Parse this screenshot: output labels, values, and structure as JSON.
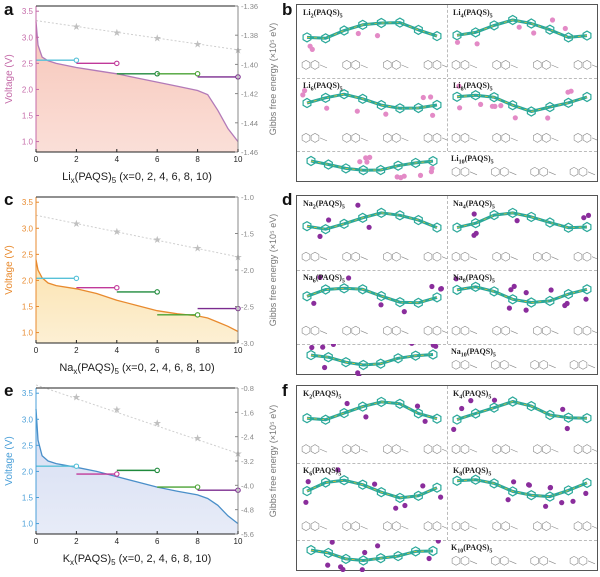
{
  "chart_data": [
    {
      "type": "line",
      "panel": "a",
      "xlabel_prefix": "Li",
      "xlabel_suffix": "(PAQS)",
      "xlabel_tail": " (x=0, 2, 4, 6, 8, 10)",
      "ylabel": "Voltage (V)",
      "y2label": "Gibbs free energy (×10⁵ eV)",
      "xlim": [
        0,
        10
      ],
      "ylim": [
        0.8,
        3.6
      ],
      "y2lim": [
        -1.46,
        -1.36
      ],
      "xticks": [
        0,
        2,
        4,
        6,
        8,
        10
      ],
      "yticks": [
        1.0,
        1.5,
        2.0,
        2.5,
        3.0,
        3.5
      ],
      "y2ticks": [
        -1.36,
        -1.38,
        -1.4,
        -1.42,
        -1.44,
        -1.46
      ],
      "voltage_curve": {
        "x": [
          0,
          0.1,
          0.3,
          0.6,
          1,
          2,
          3,
          4,
          5,
          6,
          7,
          8,
          8.5,
          9,
          9.5,
          10
        ],
        "y": [
          3.3,
          2.85,
          2.62,
          2.55,
          2.5,
          2.42,
          2.36,
          2.3,
          2.22,
          2.14,
          2.06,
          1.98,
          1.9,
          1.6,
          1.25,
          1.0
        ]
      },
      "energy_points": {
        "x": [
          2,
          4,
          6,
          8,
          10
        ],
        "y": [
          -1.374,
          -1.378,
          -1.382,
          -1.386,
          -1.39
        ]
      },
      "step_segments": [
        {
          "x1": 0,
          "x2": 2,
          "y": 2.56
        },
        {
          "x1": 2,
          "x2": 4,
          "y": 2.5
        },
        {
          "x1": 4,
          "x2": 6,
          "y": 2.3
        },
        {
          "x1": 6,
          "x2": 8,
          "y": 2.3
        },
        {
          "x1": 8,
          "x2": 10,
          "y": 2.24
        }
      ],
      "curve_color": "#b37ab8",
      "fill_color": "#f7c5b8",
      "axis_color": "#c46aa8"
    },
    {
      "type": "line",
      "panel": "c",
      "xlabel_prefix": "Na",
      "xlabel_suffix": "(PAQS)",
      "xlabel_tail": " (x=0, 2, 4, 6, 8, 10)",
      "ylabel": "Voltage (V)",
      "y2label": "Gibbs free energy (×10⁵ eV)",
      "xlim": [
        0,
        10
      ],
      "ylim": [
        0.8,
        3.6
      ],
      "y2lim": [
        -3.0,
        -1.0
      ],
      "xticks": [
        0,
        2,
        4,
        6,
        8,
        10
      ],
      "yticks": [
        1.0,
        1.5,
        2.0,
        2.5,
        3.0,
        3.5
      ],
      "y2ticks": [
        -1.0,
        -1.5,
        -2.0,
        -2.5,
        -3.0
      ],
      "voltage_curve": {
        "x": [
          0,
          0.1,
          0.3,
          0.6,
          1,
          2,
          3,
          4,
          5,
          6,
          7,
          8,
          8.5,
          9,
          9.5,
          10
        ],
        "y": [
          2.4,
          2.2,
          2.05,
          1.95,
          1.9,
          1.84,
          1.75,
          1.62,
          1.52,
          1.42,
          1.36,
          1.32,
          1.28,
          1.2,
          1.12,
          1.02
        ]
      },
      "energy_points": {
        "x": [
          2,
          4,
          6,
          8,
          10
        ],
        "y": [
          -1.36,
          -1.47,
          -1.58,
          -1.7,
          -1.82
        ]
      },
      "step_segments": [
        {
          "x1": 0,
          "x2": 2,
          "y": 2.04
        },
        {
          "x1": 2,
          "x2": 4,
          "y": 1.86
        },
        {
          "x1": 4,
          "x2": 6,
          "y": 1.78
        },
        {
          "x1": 6,
          "x2": 8,
          "y": 1.34
        },
        {
          "x1": 8,
          "x2": 10,
          "y": 1.46
        }
      ],
      "curve_color": "#e88a2e",
      "fill_color": "#fbe3b0",
      "axis_color": "#e88a2e"
    },
    {
      "type": "line",
      "panel": "e",
      "xlabel_prefix": "K",
      "xlabel_suffix": "(PAQS)",
      "xlabel_tail": " (x=0, 2, 4, 6, 8, 10)",
      "ylabel": "Voltage (V)",
      "y2label": "Gibbs free energy (×10⁵ eV)",
      "xlim": [
        0,
        10
      ],
      "ylim": [
        0.8,
        3.6
      ],
      "y2lim": [
        -5.6,
        -0.8
      ],
      "xticks": [
        0,
        2,
        4,
        6,
        8,
        10
      ],
      "yticks": [
        1.0,
        1.5,
        2.0,
        2.5,
        3.0,
        3.5
      ],
      "y2ticks": [
        -0.8,
        -1.6,
        -2.4,
        -3.2,
        -4.0,
        -4.8,
        -5.6
      ],
      "voltage_curve": {
        "x": [
          0,
          0.1,
          0.3,
          0.6,
          1,
          2,
          3,
          4,
          5,
          6,
          7,
          8,
          8.5,
          9,
          9.5,
          10
        ],
        "y": [
          3.2,
          2.6,
          2.3,
          2.2,
          2.15,
          2.08,
          2.0,
          1.9,
          1.8,
          1.7,
          1.62,
          1.55,
          1.48,
          1.35,
          1.15,
          1.0
        ]
      },
      "energy_points": {
        "x": [
          2,
          4,
          6,
          8,
          10
        ],
        "y": [
          -1.1,
          -1.5,
          -1.95,
          -2.45,
          -2.95
        ]
      },
      "step_segments": [
        {
          "x1": 0,
          "x2": 2,
          "y": 2.1
        },
        {
          "x1": 2,
          "x2": 4,
          "y": 1.95
        },
        {
          "x1": 4,
          "x2": 6,
          "y": 2.02
        },
        {
          "x1": 6,
          "x2": 8,
          "y": 1.7
        },
        {
          "x1": 8,
          "x2": 10,
          "y": 1.64
        }
      ],
      "curve_color": "#4a8fc9",
      "fill_color": "#d4dcf2",
      "axis_color": "#4a9fd8"
    }
  ],
  "step_colors": [
    "#57c1d8",
    "#c0399a",
    "#1f8a3c",
    "#4aa234",
    "#7b2c8f"
  ],
  "energy_marker_color": "#c0c0c0",
  "panel_letters": [
    "a",
    "b",
    "c",
    "d",
    "e",
    "f"
  ],
  "molecule_panels": [
    {
      "letter": "b",
      "atom_color": "#e38ac6",
      "labels": [
        {
          "prefix": "Li",
          "sub": "2",
          "tail": "(PAQS)",
          "tail_sub": "5"
        },
        {
          "prefix": "Li",
          "sub": "4",
          "tail": "(PAQS)",
          "tail_sub": "5"
        },
        {
          "prefix": "Li",
          "sub": "6",
          "tail": "(PAQS)",
          "tail_sub": "5"
        },
        {
          "prefix": "Li",
          "sub": "8",
          "tail": "(PAQS)",
          "tail_sub": "5"
        },
        {
          "prefix": "Li",
          "sub": "10",
          "tail": "(PAQS)",
          "tail_sub": "5"
        }
      ]
    },
    {
      "letter": "d",
      "atom_color": "#8a2d9c",
      "labels": [
        {
          "prefix": "Na",
          "sub": "2",
          "tail": "(PAQS)",
          "tail_sub": "5"
        },
        {
          "prefix": "Na",
          "sub": "4",
          "tail": "(PAQS)",
          "tail_sub": "5"
        },
        {
          "prefix": "Na",
          "sub": "6",
          "tail": "(PAQS)",
          "tail_sub": "5"
        },
        {
          "prefix": "Na",
          "sub": "8",
          "tail": "(PAQS)",
          "tail_sub": "5"
        },
        {
          "prefix": "Na",
          "sub": "10",
          "tail": "(PAQS)",
          "tail_sub": "5"
        }
      ]
    },
    {
      "letter": "f",
      "atom_color": "#8a2d9c",
      "labels": [
        {
          "prefix": "K",
          "sub": "2",
          "tail": "(PAQS)",
          "tail_sub": "5"
        },
        {
          "prefix": "K",
          "sub": "4",
          "tail": "(PAQS)",
          "tail_sub": "5"
        },
        {
          "prefix": "K",
          "sub": "6",
          "tail": "(PAQS)",
          "tail_sub": "5"
        },
        {
          "prefix": "K",
          "sub": "8",
          "tail": "(PAQS)",
          "tail_sub": "5"
        },
        {
          "prefix": "K",
          "sub": "10",
          "tail": "(PAQS)",
          "tail_sub": "5"
        }
      ]
    }
  ],
  "bond_color": "#2aa89a",
  "bond_accent": "#d8c23a"
}
